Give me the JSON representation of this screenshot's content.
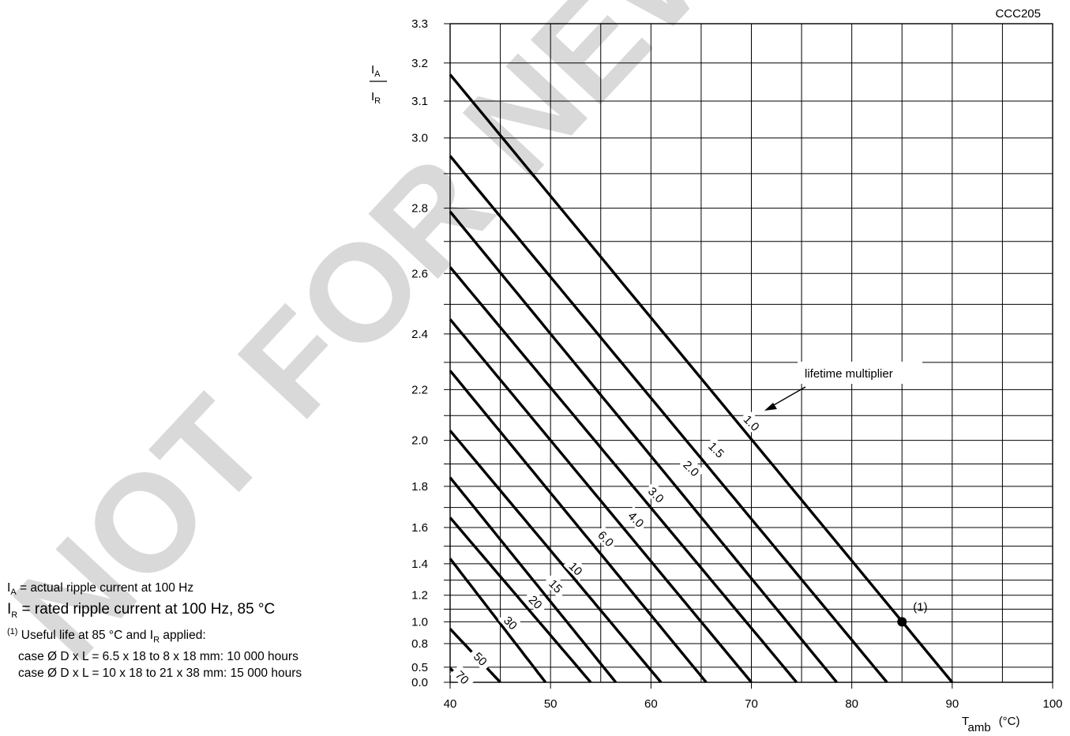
{
  "figure_code": "CCC205",
  "watermark": "NOT FOR NEW",
  "notes": {
    "ia_symbol": "I",
    "ia_sub": "A",
    "ia_text": " = actual ripple current at 100 Hz",
    "ir_symbol": "I",
    "ir_sub": "R",
    "ir_text": " = rated ripple current at 100 Hz, 85 °C",
    "note_mark": "(1)",
    "note_text": " Useful life at 85 °C and I",
    "note_sub": "R",
    "note_text2": " applied:",
    "case1": "case Ø D x L = 6.5 x 18 to 8 x 18 mm: 10 000 hours",
    "case2": "case Ø D x L = 10 x 18 to 21 x 38 mm: 15 000 hours"
  },
  "chart_data": {
    "type": "line",
    "title": "",
    "ylabel": {
      "num": "I",
      "num_sub": "A",
      "den": "I",
      "den_sub": "R"
    },
    "xlabel": {
      "symbol": "T",
      "sub": "amb",
      "unit": "(°C)"
    },
    "xlim": [
      40,
      100
    ],
    "x_ticks": [
      40,
      50,
      60,
      70,
      80,
      90,
      100
    ],
    "y_ticks": [
      0.0,
      0.5,
      0.8,
      1.0,
      1.2,
      1.4,
      1.6,
      1.8,
      2.0,
      2.2,
      2.4,
      2.6,
      2.8,
      3.0,
      3.1,
      3.2,
      3.3
    ],
    "y_tick_labels": [
      "0.0",
      "0.5",
      "0.8",
      "1.0",
      "1.2",
      "1.4",
      "1.6",
      "1.8",
      "2.0",
      "2.2",
      "2.4",
      "2.6",
      "2.8",
      "3.0",
      "3.1",
      "3.2",
      "3.3"
    ],
    "y_scale": "square (I²)",
    "grid": true,
    "annotation_text": "lifetime multiplier",
    "point": {
      "x": 85,
      "y": 1.0,
      "label": "(1)"
    },
    "series": [
      {
        "label": "1.0",
        "points": [
          [
            40,
            3.17
          ],
          [
            90,
            0.0
          ]
        ],
        "label_at": [
          70,
          2.07
        ]
      },
      {
        "label": "1.5",
        "points": [
          [
            40,
            2.95
          ],
          [
            83.5,
            0.0
          ]
        ],
        "label_at": [
          66.5,
          1.96
        ]
      },
      {
        "label": "2.0",
        "points": [
          [
            40,
            2.79
          ],
          [
            78.5,
            0.0
          ]
        ],
        "label_at": [
          64,
          1.88
        ]
      },
      {
        "label": "3.0",
        "points": [
          [
            40,
            2.62
          ],
          [
            74.5,
            0.0
          ]
        ],
        "label_at": [
          60.5,
          1.76
        ]
      },
      {
        "label": "4.0",
        "points": [
          [
            40,
            2.45
          ],
          [
            70,
            0.0
          ]
        ],
        "label_at": [
          58.5,
          1.64
        ]
      },
      {
        "label": "6.0",
        "points": [
          [
            40,
            2.27
          ],
          [
            65.5,
            0.0
          ]
        ],
        "label_at": [
          55.5,
          1.54
        ]
      },
      {
        "label": "10",
        "points": [
          [
            40,
            2.04
          ],
          [
            61,
            0.0
          ]
        ],
        "label_at": [
          52.5,
          1.37
        ]
      },
      {
        "label": "15",
        "points": [
          [
            40,
            1.84
          ],
          [
            56.5,
            0.0
          ]
        ],
        "label_at": [
          50.5,
          1.26
        ]
      },
      {
        "label": "20",
        "points": [
          [
            40,
            1.65
          ],
          [
            54,
            0.0
          ]
        ],
        "label_at": [
          48.5,
          1.15
        ]
      },
      {
        "label": "30",
        "points": [
          [
            40,
            1.43
          ],
          [
            49.5,
            0.0
          ]
        ],
        "label_at": [
          46,
          0.99
        ]
      },
      {
        "label": "50",
        "points": [
          [
            40,
            0.94
          ],
          [
            45,
            0.0
          ]
        ],
        "label_at": [
          43,
          0.62
        ]
      },
      {
        "label": "70",
        "points": [
          [
            40,
            0.48
          ],
          [
            41.5,
            0.0
          ]
        ],
        "label_at": [
          41.2,
          0.28
        ]
      }
    ]
  }
}
